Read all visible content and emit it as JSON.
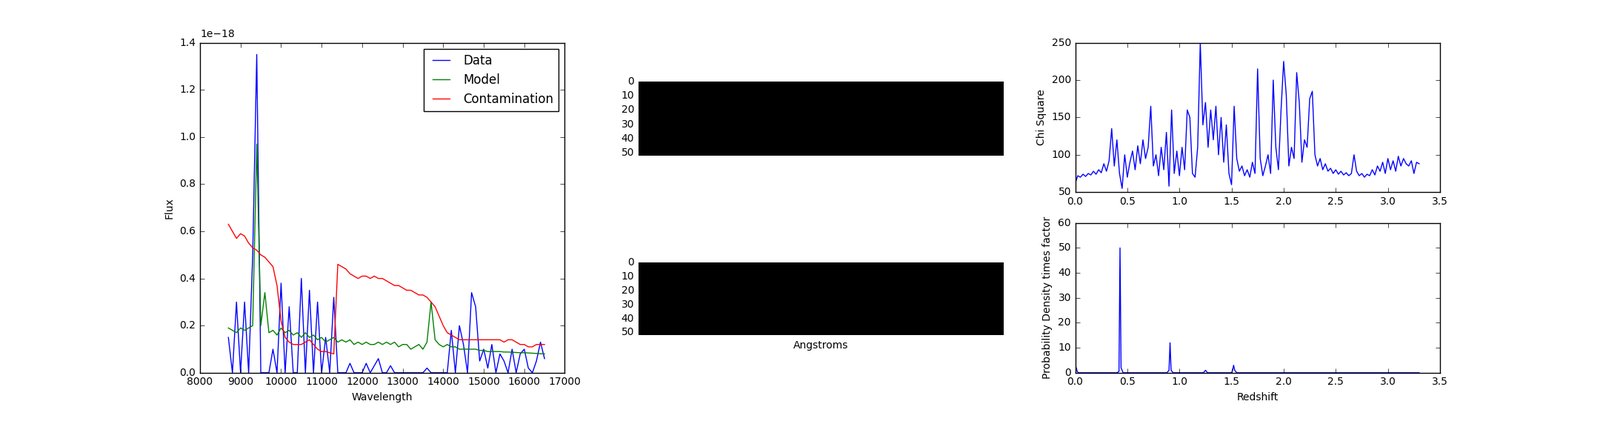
{
  "chart_data": [
    {
      "type": "line",
      "x_label": "Wavelength",
      "y_label": "Flux",
      "annotation": "1e−18",
      "legend": "upper right",
      "x": [
        8700,
        8800,
        8900,
        9000,
        9100,
        9200,
        9300,
        9400,
        9500,
        9600,
        9700,
        9800,
        9900,
        10000,
        10100,
        10200,
        10300,
        10400,
        10500,
        10600,
        10700,
        10800,
        10900,
        11000,
        11100,
        11200,
        11300,
        11400,
        11500,
        11600,
        11700,
        11800,
        11900,
        12000,
        12100,
        12200,
        12300,
        12400,
        12500,
        12600,
        12700,
        12800,
        12900,
        13000,
        13100,
        13200,
        13300,
        13400,
        13500,
        13600,
        13700,
        13800,
        13900,
        14000,
        14100,
        14200,
        14300,
        14400,
        14500,
        14600,
        14700,
        14800,
        14900,
        15000,
        15100,
        15200,
        15300,
        15400,
        15500,
        15600,
        15700,
        15800,
        15900,
        16000,
        16100,
        16200,
        16300,
        16400,
        16500
      ],
      "series": [
        {
          "name": "Data",
          "color": "#0000ff",
          "values": [
            0.15,
            0.0,
            0.3,
            0.0,
            0.3,
            0.0,
            0.5,
            1.35,
            0.0,
            0.0,
            0.0,
            0.1,
            0.0,
            0.38,
            0.0,
            0.28,
            0.0,
            0.0,
            0.4,
            0.0,
            0.35,
            0.0,
            0.3,
            0.0,
            0.15,
            0.0,
            0.32,
            0.0,
            0.0,
            0.0,
            0.04,
            0.0,
            0.0,
            0.0,
            0.04,
            0.0,
            0.03,
            0.06,
            0.0,
            0.0,
            0.03,
            0.0,
            0.0,
            0.0,
            0.0,
            0.0,
            0.0,
            0.0,
            0.0,
            0.02,
            0.0,
            0.0,
            0.0,
            0.0,
            0.0,
            0.18,
            0.0,
            0.2,
            0.12,
            0.0,
            0.34,
            0.28,
            0.05,
            0.1,
            0.02,
            0.12,
            0.0,
            0.08,
            0.05,
            0.0,
            0.1,
            0.0,
            0.08,
            0.1,
            0.02,
            0.0,
            0.05,
            0.13,
            0.06
          ]
        },
        {
          "name": "Model",
          "color": "#008000",
          "values": [
            0.19,
            0.18,
            0.17,
            0.19,
            0.18,
            0.19,
            0.2,
            0.97,
            0.2,
            0.34,
            0.17,
            0.18,
            0.16,
            0.19,
            0.17,
            0.18,
            0.16,
            0.17,
            0.15,
            0.17,
            0.15,
            0.16,
            0.14,
            0.15,
            0.13,
            0.14,
            0.15,
            0.13,
            0.14,
            0.13,
            0.14,
            0.12,
            0.13,
            0.12,
            0.13,
            0.12,
            0.12,
            0.13,
            0.12,
            0.13,
            0.12,
            0.13,
            0.11,
            0.12,
            0.12,
            0.1,
            0.11,
            0.12,
            0.1,
            0.13,
            0.3,
            0.14,
            0.12,
            0.11,
            0.12,
            0.11,
            0.11,
            0.1,
            0.1,
            0.1,
            0.1,
            0.1,
            0.095,
            0.095,
            0.09,
            0.09,
            0.09,
            0.09,
            0.088,
            0.088,
            0.087,
            0.086,
            0.085,
            0.085,
            0.084,
            0.083,
            0.082,
            0.081,
            0.08
          ]
        },
        {
          "name": "Contamination",
          "color": "#ff0000",
          "values": [
            0.63,
            0.6,
            0.57,
            0.59,
            0.58,
            0.55,
            0.53,
            0.52,
            0.5,
            0.49,
            0.47,
            0.45,
            0.37,
            0.22,
            0.15,
            0.13,
            0.12,
            0.12,
            0.12,
            0.13,
            0.14,
            0.12,
            0.1,
            0.09,
            0.09,
            0.085,
            0.08,
            0.46,
            0.45,
            0.44,
            0.42,
            0.41,
            0.4,
            0.41,
            0.41,
            0.4,
            0.41,
            0.4,
            0.4,
            0.39,
            0.38,
            0.37,
            0.37,
            0.36,
            0.35,
            0.35,
            0.34,
            0.33,
            0.33,
            0.32,
            0.3,
            0.28,
            0.24,
            0.2,
            0.17,
            0.16,
            0.15,
            0.14,
            0.14,
            0.14,
            0.14,
            0.14,
            0.14,
            0.14,
            0.14,
            0.14,
            0.14,
            0.14,
            0.13,
            0.14,
            0.14,
            0.13,
            0.12,
            0.12,
            0.11,
            0.11,
            0.12,
            0.12,
            0.12
          ]
        }
      ],
      "xlim": [
        8000,
        17000
      ],
      "xticks": [
        8000,
        9000,
        10000,
        11000,
        12000,
        13000,
        14000,
        15000,
        16000,
        17000
      ],
      "ylim": [
        0,
        1.4
      ],
      "yticks": [
        {
          "value": 0,
          "label": "0.0"
        },
        {
          "value": 0.2,
          "label": "0.2"
        },
        {
          "value": 0.4,
          "label": "0.4"
        },
        {
          "value": 0.6,
          "label": "0.6"
        },
        {
          "value": 0.8,
          "label": "0.8"
        },
        {
          "value": 1.0,
          "label": "1.0"
        },
        {
          "value": 1.2,
          "label": "1.2"
        },
        {
          "value": 1.4,
          "label": "1.4"
        }
      ]
    },
    {
      "type": "image",
      "value": 0,
      "clim": [
        0,
        1
      ],
      "xlim": [
        0,
        260
      ],
      "ylim": [
        52,
        0
      ],
      "yticks": [
        0,
        10,
        20,
        30,
        40,
        50
      ],
      "tick_labels": "y"
    },
    {
      "type": "image",
      "value": 0,
      "clim": [
        0,
        1
      ],
      "xlim": [
        0,
        260
      ],
      "ylim": [
        52,
        0
      ],
      "yticks": [
        0,
        10,
        20,
        30,
        40,
        50
      ],
      "tick_labels": "y",
      "x_label": "Angstroms"
    },
    {
      "type": "line",
      "y_label": "Chi Square",
      "x": [
        0.0,
        0.025,
        0.05,
        0.075,
        0.1,
        0.125,
        0.15,
        0.175,
        0.2,
        0.225,
        0.25,
        0.275,
        0.3,
        0.325,
        0.35,
        0.375,
        0.4,
        0.425,
        0.45,
        0.475,
        0.5,
        0.525,
        0.55,
        0.575,
        0.6,
        0.625,
        0.65,
        0.675,
        0.7,
        0.725,
        0.75,
        0.775,
        0.8,
        0.825,
        0.85,
        0.875,
        0.9,
        0.925,
        0.95,
        0.975,
        1.0,
        1.025,
        1.05,
        1.075,
        1.1,
        1.125,
        1.15,
        1.175,
        1.2,
        1.225,
        1.25,
        1.275,
        1.3,
        1.325,
        1.35,
        1.375,
        1.4,
        1.425,
        1.45,
        1.475,
        1.5,
        1.525,
        1.55,
        1.575,
        1.6,
        1.625,
        1.65,
        1.675,
        1.7,
        1.725,
        1.75,
        1.775,
        1.8,
        1.825,
        1.85,
        1.875,
        1.9,
        1.925,
        1.95,
        1.975,
        2.0,
        2.025,
        2.05,
        2.075,
        2.1,
        2.125,
        2.15,
        2.175,
        2.2,
        2.225,
        2.25,
        2.275,
        2.3,
        2.325,
        2.35,
        2.375,
        2.4,
        2.425,
        2.45,
        2.475,
        2.5,
        2.525,
        2.55,
        2.575,
        2.6,
        2.625,
        2.65,
        2.675,
        2.7,
        2.725,
        2.75,
        2.775,
        2.8,
        2.825,
        2.85,
        2.875,
        2.9,
        2.925,
        2.95,
        2.975,
        3.0,
        3.025,
        3.05,
        3.075,
        3.1,
        3.125,
        3.15,
        3.175,
        3.2,
        3.225,
        3.25,
        3.275,
        3.3
      ],
      "series": [
        {
          "color": "#0000ff",
          "values": [
            62,
            72,
            70,
            74,
            71,
            75,
            73,
            78,
            74,
            80,
            76,
            88,
            78,
            92,
            135,
            85,
            120,
            75,
            55,
            100,
            70,
            90,
            105,
            80,
            112,
            88,
            120,
            95,
            110,
            165,
            85,
            100,
            72,
            110,
            80,
            130,
            58,
            160,
            75,
            105,
            72,
            110,
            80,
            160,
            150,
            75,
            70,
            110,
            250,
            140,
            170,
            110,
            160,
            120,
            165,
            100,
            150,
            90,
            140,
            75,
            60,
            165,
            95,
            78,
            85,
            72,
            80,
            70,
            90,
            75,
            215,
            95,
            72,
            85,
            100,
            75,
            200,
            110,
            80,
            160,
            225,
            180,
            85,
            110,
            95,
            210,
            170,
            90,
            120,
            110,
            175,
            185,
            100,
            85,
            95,
            80,
            88,
            78,
            82,
            75,
            80,
            74,
            78,
            73,
            76,
            72,
            75,
            100,
            78,
            72,
            75,
            70,
            74,
            72,
            80,
            73,
            85,
            78,
            90,
            75,
            95,
            80,
            92,
            78,
            98,
            85,
            95,
            88,
            85,
            92,
            75,
            90,
            88
          ]
        }
      ],
      "xlim": [
        0,
        3.5
      ],
      "xticks": [
        {
          "value": 0,
          "label": "0.0"
        },
        {
          "value": 0.5,
          "label": "0.5"
        },
        {
          "value": 1.0,
          "label": "1.0"
        },
        {
          "value": 1.5,
          "label": "1.5"
        },
        {
          "value": 2.0,
          "label": "2.0"
        },
        {
          "value": 2.5,
          "label": "2.5"
        },
        {
          "value": 3.0,
          "label": "3.0"
        },
        {
          "value": 3.5,
          "label": "3.5"
        }
      ],
      "ylim": [
        50,
        250
      ],
      "yticks": [
        50,
        100,
        150,
        200,
        250
      ]
    },
    {
      "type": "line",
      "x_label": "Redshift",
      "y_label": "Probability Density times factor",
      "x": [
        0.0,
        0.01,
        0.02,
        0.03,
        0.4,
        0.42,
        0.43,
        0.44,
        0.46,
        0.88,
        0.9,
        0.91,
        0.92,
        0.94,
        1.23,
        1.25,
        1.27,
        1.5,
        1.51,
        1.52,
        1.53,
        1.55,
        3.3
      ],
      "series": [
        {
          "color": "#0000ff",
          "values": [
            1.5,
            2,
            0.5,
            0,
            0,
            0.5,
            50,
            2,
            0,
            0,
            1,
            12,
            1,
            0,
            0,
            1,
            0,
            0,
            1,
            3,
            1,
            0,
            0
          ]
        }
      ],
      "xlim": [
        0,
        3.5
      ],
      "xticks": [
        {
          "value": 0,
          "label": "0.0"
        },
        {
          "value": 0.5,
          "label": "0.5"
        },
        {
          "value": 1.0,
          "label": "1.0"
        },
        {
          "value": 1.5,
          "label": "1.5"
        },
        {
          "value": 2.0,
          "label": "2.0"
        },
        {
          "value": 2.5,
          "label": "2.5"
        },
        {
          "value": 3.0,
          "label": "3.0"
        },
        {
          "value": 3.5,
          "label": "3.5"
        }
      ],
      "ylim": [
        0,
        60
      ],
      "yticks": [
        0,
        10,
        20,
        30,
        40,
        50,
        60
      ]
    }
  ]
}
